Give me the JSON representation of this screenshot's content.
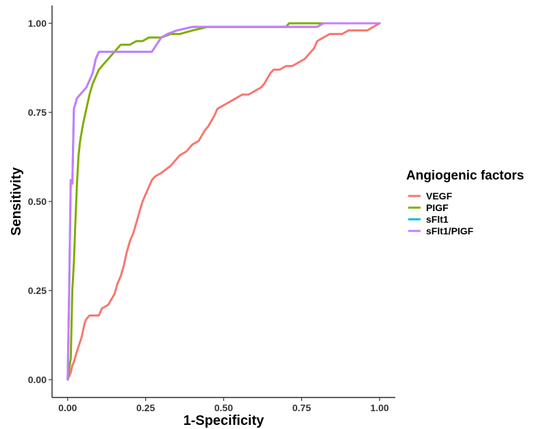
{
  "chart_data": {
    "type": "line",
    "xlabel": "1-Specificity",
    "ylabel": "Sensitivity",
    "xlim": [
      -0.05,
      1.05
    ],
    "ylim": [
      -0.05,
      1.05
    ],
    "x_ticks": [
      0.0,
      0.25,
      0.5,
      0.75,
      1.0
    ],
    "x_tick_labels": [
      "0.00",
      "0.25",
      "0.50",
      "0.75",
      "1.00"
    ],
    "y_ticks": [
      0.0,
      0.25,
      0.5,
      0.75,
      1.0
    ],
    "y_tick_labels": [
      "0.00",
      "0.25",
      "0.50",
      "0.75",
      "1.00"
    ],
    "grid": false,
    "legend": {
      "title": "Angiogenic factors",
      "position": "right"
    },
    "series": [
      {
        "name": "VEGF",
        "color": "#F8766D",
        "x": [
          0.0,
          0.01,
          0.015,
          0.02,
          0.03,
          0.045,
          0.05,
          0.055,
          0.06,
          0.07,
          0.08,
          0.09,
          0.1,
          0.11,
          0.13,
          0.15,
          0.16,
          0.17,
          0.18,
          0.185,
          0.19,
          0.2,
          0.21,
          0.22,
          0.23,
          0.24,
          0.25,
          0.26,
          0.27,
          0.28,
          0.3,
          0.33,
          0.34,
          0.36,
          0.38,
          0.4,
          0.42,
          0.44,
          0.45,
          0.47,
          0.48,
          0.5,
          0.52,
          0.54,
          0.56,
          0.58,
          0.6,
          0.62,
          0.63,
          0.65,
          0.66,
          0.67,
          0.68,
          0.7,
          0.72,
          0.74,
          0.76,
          0.77,
          0.78,
          0.79,
          0.8,
          0.82,
          0.84,
          0.86,
          0.88,
          0.9,
          0.92,
          0.94,
          0.96,
          0.98,
          1.0
        ],
        "y": [
          0.0,
          0.02,
          0.04,
          0.05,
          0.08,
          0.12,
          0.14,
          0.16,
          0.17,
          0.18,
          0.18,
          0.18,
          0.18,
          0.2,
          0.21,
          0.24,
          0.27,
          0.29,
          0.32,
          0.34,
          0.36,
          0.39,
          0.41,
          0.44,
          0.47,
          0.5,
          0.52,
          0.54,
          0.56,
          0.57,
          0.58,
          0.6,
          0.61,
          0.63,
          0.64,
          0.66,
          0.67,
          0.7,
          0.71,
          0.74,
          0.76,
          0.77,
          0.78,
          0.79,
          0.8,
          0.8,
          0.81,
          0.82,
          0.83,
          0.86,
          0.87,
          0.87,
          0.87,
          0.88,
          0.88,
          0.89,
          0.9,
          0.91,
          0.92,
          0.93,
          0.95,
          0.96,
          0.97,
          0.97,
          0.97,
          0.98,
          0.98,
          0.98,
          0.98,
          0.99,
          1.0
        ]
      },
      {
        "name": "PIGF",
        "color": "#7CAE00",
        "x": [
          0.0,
          0.01,
          0.015,
          0.02,
          0.025,
          0.03,
          0.035,
          0.04,
          0.05,
          0.06,
          0.07,
          0.08,
          0.09,
          0.1,
          0.11,
          0.12,
          0.13,
          0.14,
          0.15,
          0.16,
          0.17,
          0.18,
          0.2,
          0.22,
          0.24,
          0.26,
          0.28,
          0.3,
          0.33,
          0.36,
          0.4,
          0.45,
          0.5,
          0.6,
          0.7,
          0.71,
          0.8,
          0.9,
          1.0
        ],
        "y": [
          0.0,
          0.06,
          0.25,
          0.33,
          0.45,
          0.55,
          0.63,
          0.67,
          0.72,
          0.76,
          0.8,
          0.83,
          0.85,
          0.87,
          0.88,
          0.89,
          0.9,
          0.91,
          0.92,
          0.93,
          0.94,
          0.94,
          0.94,
          0.95,
          0.95,
          0.96,
          0.96,
          0.96,
          0.97,
          0.97,
          0.98,
          0.99,
          0.99,
          0.99,
          0.99,
          1.0,
          1.0,
          1.0,
          1.0
        ]
      },
      {
        "name": "sFlt1",
        "color": "#00BFC4",
        "x": [
          0.0,
          0.005,
          0.01,
          0.015,
          0.02,
          0.03,
          0.04,
          0.05,
          0.06,
          0.07,
          0.08,
          0.09,
          0.1,
          0.15,
          0.2,
          0.27,
          0.3,
          0.32,
          0.35,
          0.4,
          0.5,
          0.6,
          0.7,
          0.8,
          0.82,
          0.9,
          1.0
        ],
        "y": [
          0.0,
          0.25,
          0.56,
          0.55,
          0.76,
          0.79,
          0.8,
          0.81,
          0.82,
          0.84,
          0.86,
          0.9,
          0.92,
          0.92,
          0.92,
          0.92,
          0.96,
          0.97,
          0.98,
          0.99,
          0.99,
          0.99,
          0.99,
          0.99,
          1.0,
          1.0,
          1.0
        ]
      },
      {
        "name": "sFlt1/PIGF",
        "color": "#C77CFF",
        "x": [
          0.0,
          0.005,
          0.01,
          0.015,
          0.02,
          0.03,
          0.04,
          0.05,
          0.06,
          0.07,
          0.08,
          0.09,
          0.1,
          0.15,
          0.2,
          0.27,
          0.3,
          0.32,
          0.35,
          0.4,
          0.5,
          0.6,
          0.7,
          0.8,
          0.82,
          0.9,
          1.0
        ],
        "y": [
          0.0,
          0.25,
          0.56,
          0.55,
          0.76,
          0.79,
          0.8,
          0.81,
          0.82,
          0.84,
          0.86,
          0.9,
          0.92,
          0.92,
          0.92,
          0.92,
          0.96,
          0.97,
          0.98,
          0.99,
          0.99,
          0.99,
          0.99,
          0.99,
          1.0,
          1.0,
          1.0
        ]
      }
    ]
  }
}
